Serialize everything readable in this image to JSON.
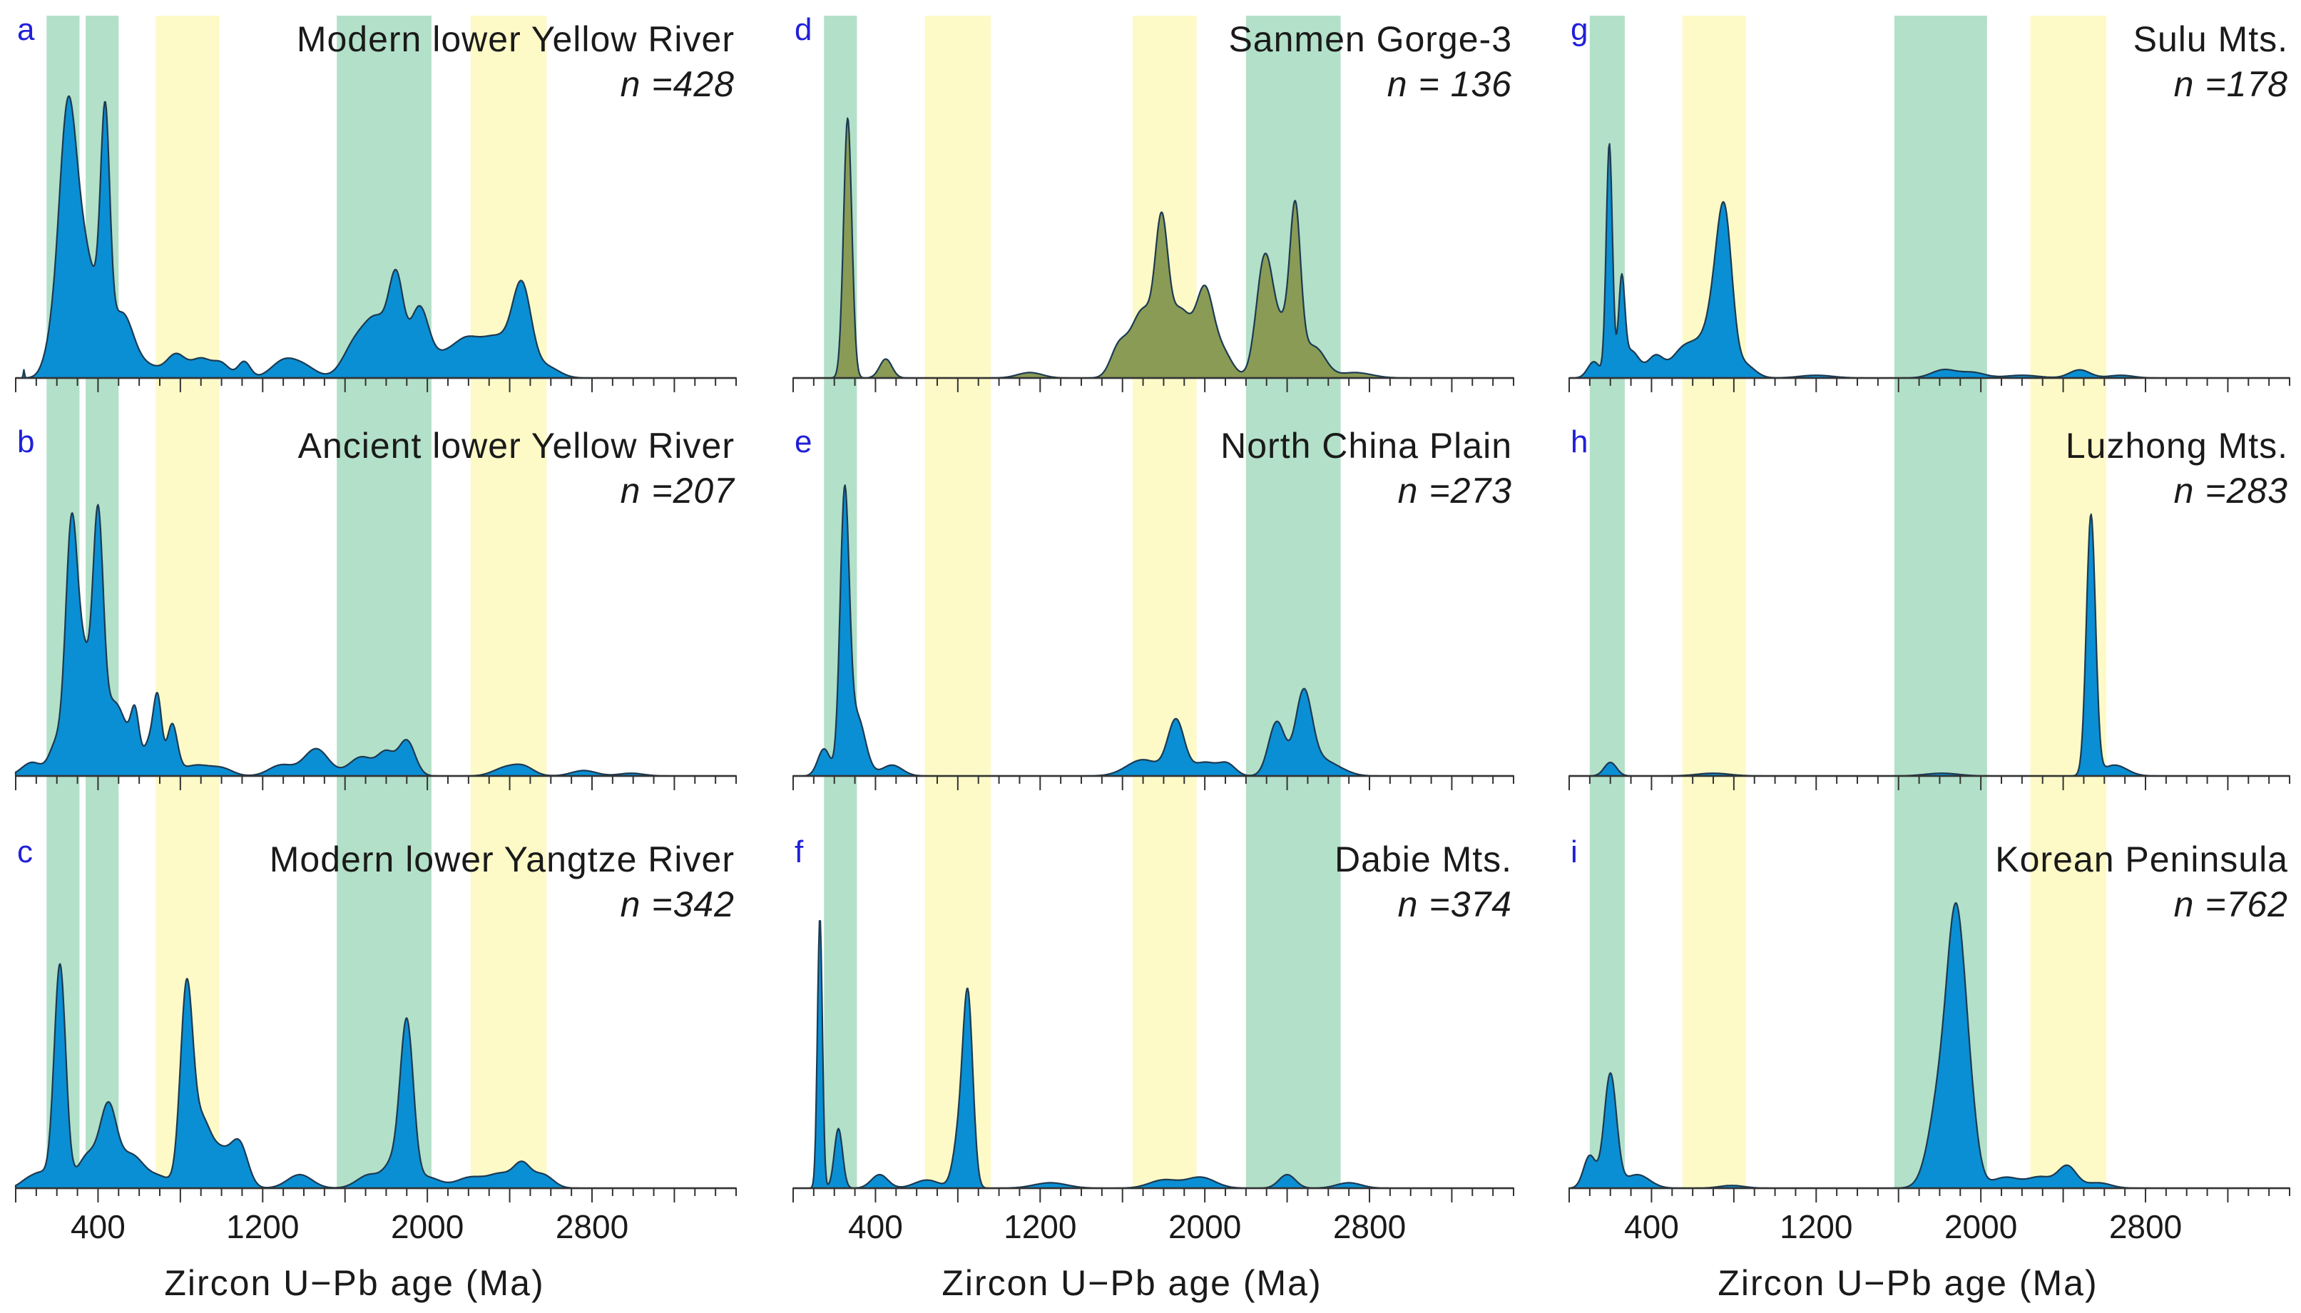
{
  "chart_data": {
    "type": "area",
    "description_axis": {
      "xlabel": "Zircon  U−Pb age (Ma)",
      "xlim": [
        0,
        3500
      ],
      "xticks": [
        400,
        1200,
        2000,
        2800
      ]
    },
    "column_bands": [
      {
        "green": [
          [
            150,
            310
          ],
          [
            340,
            500
          ],
          [
            1560,
            2020
          ]
        ],
        "yellow": [
          [
            680,
            990
          ],
          [
            2210,
            2580
          ]
        ]
      },
      {
        "green": [
          [
            150,
            310
          ],
          [
            2200,
            2660
          ]
        ],
        "yellow": [
          [
            640,
            960
          ],
          [
            1650,
            1960
          ]
        ]
      },
      {
        "green": [
          [
            100,
            270
          ],
          [
            1580,
            2030
          ]
        ],
        "yellow": [
          [
            550,
            860
          ],
          [
            2240,
            2610
          ]
        ]
      }
    ],
    "panels": [
      {
        "letter": "a",
        "title": "Modern lower Yellow River",
        "n_text": "n =428",
        "fill": "#0a8fd4",
        "peaks": [
          [
            40,
            3,
            0.03
          ],
          [
            180,
            40,
            0.12
          ],
          [
            250,
            40,
            0.85
          ],
          [
            310,
            45,
            0.3
          ],
          [
            380,
            60,
            0.28
          ],
          [
            435,
            22,
            0.78
          ],
          [
            520,
            50,
            0.2
          ],
          [
            620,
            80,
            0.05
          ],
          [
            780,
            45,
            0.08
          ],
          [
            900,
            50,
            0.07
          ],
          [
            1000,
            40,
            0.05
          ],
          [
            1110,
            30,
            0.06
          ],
          [
            1300,
            60,
            0.06
          ],
          [
            1400,
            60,
            0.04
          ],
          [
            1650,
            60,
            0.12
          ],
          [
            1760,
            60,
            0.2
          ],
          [
            1850,
            35,
            0.32
          ],
          [
            1960,
            45,
            0.25
          ],
          [
            2070,
            60,
            0.07
          ],
          [
            2180,
            60,
            0.1
          ],
          [
            2330,
            90,
            0.15
          ],
          [
            2460,
            45,
            0.3
          ],
          [
            2580,
            60,
            0.04
          ]
        ]
      },
      {
        "letter": "b",
        "title": "Ancient lower Yellow River",
        "n_text": "n =207",
        "fill": "#0a8fd4",
        "peaks": [
          [
            80,
            50,
            0.05
          ],
          [
            200,
            35,
            0.12
          ],
          [
            270,
            28,
            0.85
          ],
          [
            330,
            35,
            0.42
          ],
          [
            400,
            25,
            0.85
          ],
          [
            470,
            50,
            0.25
          ],
          [
            540,
            40,
            0.08
          ],
          [
            580,
            20,
            0.18
          ],
          [
            650,
            30,
            0.12
          ],
          [
            690,
            20,
            0.25
          ],
          [
            760,
            25,
            0.18
          ],
          [
            880,
            80,
            0.04
          ],
          [
            1010,
            50,
            0.02
          ],
          [
            1290,
            60,
            0.04
          ],
          [
            1460,
            60,
            0.1
          ],
          [
            1680,
            60,
            0.07
          ],
          [
            1800,
            40,
            0.08
          ],
          [
            1900,
            40,
            0.13
          ],
          [
            2380,
            60,
            0.03
          ],
          [
            2470,
            50,
            0.03
          ],
          [
            2760,
            60,
            0.02
          ],
          [
            2990,
            60,
            0.01
          ]
        ]
      },
      {
        "letter": "c",
        "title": "Modern lower Yangtze River",
        "n_text": "n =342",
        "fill": "#0a8fd4",
        "peaks": [
          [
            60,
            40,
            0.03
          ],
          [
            130,
            40,
            0.05
          ],
          [
            215,
            28,
            0.82
          ],
          [
            350,
            50,
            0.12
          ],
          [
            450,
            40,
            0.28
          ],
          [
            560,
            60,
            0.12
          ],
          [
            700,
            60,
            0.04
          ],
          [
            830,
            30,
            0.72
          ],
          [
            900,
            40,
            0.2
          ],
          [
            990,
            60,
            0.14
          ],
          [
            1090,
            40,
            0.14
          ],
          [
            1380,
            60,
            0.05
          ],
          [
            1720,
            60,
            0.05
          ],
          [
            1830,
            40,
            0.08
          ],
          [
            1900,
            32,
            0.6
          ],
          [
            2000,
            60,
            0.04
          ],
          [
            2210,
            70,
            0.04
          ],
          [
            2360,
            60,
            0.05
          ],
          [
            2460,
            40,
            0.08
          ],
          [
            2560,
            50,
            0.05
          ]
        ]
      },
      {
        "letter": "d",
        "title": "Sanmen Gorge-3",
        "n_text": "n = 136",
        "fill": "#8a9b55",
        "peaks": [
          [
            265,
            20,
            0.96
          ],
          [
            450,
            30,
            0.07
          ],
          [
            1150,
            60,
            0.02
          ],
          [
            1580,
            40,
            0.1
          ],
          [
            1700,
            60,
            0.25
          ],
          [
            1790,
            30,
            0.45
          ],
          [
            1880,
            60,
            0.25
          ],
          [
            2000,
            40,
            0.28
          ],
          [
            2080,
            50,
            0.1
          ],
          [
            2290,
            40,
            0.42
          ],
          [
            2400,
            60,
            0.2
          ],
          [
            2440,
            25,
            0.48
          ],
          [
            2540,
            50,
            0.1
          ],
          [
            2730,
            80,
            0.02
          ]
        ]
      },
      {
        "letter": "e",
        "title": "North  China  Plain",
        "n_text": "n =273",
        "fill": "#0a8fd4",
        "peaks": [
          [
            150,
            30,
            0.1
          ],
          [
            250,
            22,
            1.0
          ],
          [
            310,
            40,
            0.22
          ],
          [
            480,
            50,
            0.04
          ],
          [
            1700,
            80,
            0.06
          ],
          [
            1860,
            40,
            0.2
          ],
          [
            2000,
            60,
            0.05
          ],
          [
            2110,
            40,
            0.04
          ],
          [
            2350,
            40,
            0.2
          ],
          [
            2480,
            40,
            0.3
          ],
          [
            2560,
            60,
            0.05
          ],
          [
            2650,
            60,
            0.02
          ]
        ]
      },
      {
        "letter": "f",
        "title": "Dabie Mts.",
        "n_text": "n =374",
        "fill": "#0a8fd4",
        "peaks": [
          [
            130,
            12,
            1.0
          ],
          [
            220,
            20,
            0.22
          ],
          [
            420,
            40,
            0.05
          ],
          [
            650,
            60,
            0.03
          ],
          [
            810,
            30,
            0.2
          ],
          [
            850,
            24,
            0.65
          ],
          [
            1250,
            80,
            0.02
          ],
          [
            1800,
            70,
            0.03
          ],
          [
            1980,
            70,
            0.04
          ],
          [
            2400,
            40,
            0.05
          ],
          [
            2700,
            60,
            0.02
          ]
        ]
      },
      {
        "letter": "g",
        "title": "Sulu Mts.",
        "n_text": "n =178",
        "fill": "#0a8fd4",
        "peaks": [
          [
            120,
            30,
            0.06
          ],
          [
            195,
            15,
            0.86
          ],
          [
            255,
            15,
            0.33
          ],
          [
            300,
            40,
            0.1
          ],
          [
            420,
            40,
            0.08
          ],
          [
            540,
            50,
            0.08
          ],
          [
            640,
            60,
            0.12
          ],
          [
            720,
            40,
            0.25
          ],
          [
            760,
            35,
            0.45
          ],
          [
            850,
            50,
            0.05
          ],
          [
            1200,
            80,
            0.01
          ],
          [
            1820,
            60,
            0.03
          ],
          [
            1960,
            60,
            0.02
          ],
          [
            2200,
            80,
            0.01
          ],
          [
            2480,
            50,
            0.03
          ],
          [
            2680,
            60,
            0.01
          ]
        ]
      },
      {
        "letter": "h",
        "title": "Luzhong Mts.",
        "n_text": "n =283",
        "fill": "#0a8fd4",
        "peaks": [
          [
            200,
            30,
            0.05
          ],
          [
            700,
            80,
            0.01
          ],
          [
            1810,
            80,
            0.01
          ],
          [
            2535,
            22,
            0.96
          ],
          [
            2650,
            60,
            0.04
          ]
        ]
      },
      {
        "letter": "i",
        "title": "Korean  Peninsula",
        "n_text": "n =762",
        "fill": "#0a8fd4",
        "peaks": [
          [
            100,
            30,
            0.12
          ],
          [
            200,
            30,
            0.42
          ],
          [
            330,
            60,
            0.05
          ],
          [
            790,
            60,
            0.01
          ],
          [
            1820,
            60,
            0.42
          ],
          [
            1880,
            40,
            0.7
          ],
          [
            1940,
            40,
            0.3
          ],
          [
            2120,
            70,
            0.04
          ],
          [
            2290,
            60,
            0.04
          ],
          [
            2420,
            45,
            0.08
          ],
          [
            2570,
            60,
            0.02
          ]
        ]
      }
    ]
  }
}
